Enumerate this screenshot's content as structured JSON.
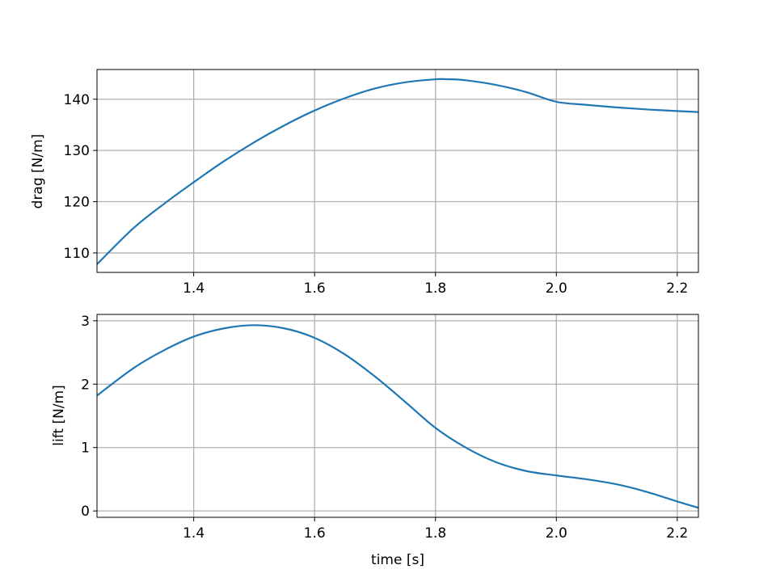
{
  "chart_data": [
    {
      "type": "line",
      "xlabel": "",
      "ylabel": "drag [N/m]",
      "xlim": [
        1.24,
        2.235
      ],
      "ylim": [
        106.2,
        145.8
      ],
      "xticks": [
        1.4,
        1.6,
        1.8,
        2.0,
        2.2
      ],
      "xtick_labels": [
        "1.4",
        "1.6",
        "1.8",
        "2.0",
        "2.2"
      ],
      "yticks": [
        110,
        120,
        130,
        140
      ],
      "ytick_labels": [
        "110",
        "120",
        "130",
        "140"
      ],
      "grid": true,
      "series": [
        {
          "color": "#1f77b4",
          "x": [
            1.24,
            1.3,
            1.35,
            1.4,
            1.45,
            1.5,
            1.55,
            1.6,
            1.65,
            1.7,
            1.75,
            1.8,
            1.82,
            1.85,
            1.9,
            1.95,
            2.0,
            2.05,
            2.1,
            2.15,
            2.2,
            2.235
          ],
          "y": [
            107.8,
            114.8,
            119.5,
            123.8,
            127.9,
            131.6,
            134.9,
            137.8,
            140.2,
            142.1,
            143.3,
            143.9,
            143.9,
            143.7,
            142.8,
            141.4,
            139.5,
            138.9,
            138.4,
            138.0,
            137.7,
            137.5
          ]
        }
      ]
    },
    {
      "type": "line",
      "xlabel": "time [s]",
      "ylabel": "lift [N/m]",
      "xlim": [
        1.24,
        2.235
      ],
      "ylim": [
        -0.1,
        3.1
      ],
      "xticks": [
        1.4,
        1.6,
        1.8,
        2.0,
        2.2
      ],
      "xtick_labels": [
        "1.4",
        "1.6",
        "1.8",
        "2.0",
        "2.2"
      ],
      "yticks": [
        0,
        1,
        2,
        3
      ],
      "ytick_labels": [
        "0",
        "1",
        "2",
        "3"
      ],
      "grid": true,
      "series": [
        {
          "color": "#1f77b4",
          "x": [
            1.24,
            1.3,
            1.35,
            1.4,
            1.45,
            1.5,
            1.55,
            1.6,
            1.65,
            1.7,
            1.75,
            1.8,
            1.85,
            1.9,
            1.95,
            2.0,
            2.05,
            2.1,
            2.15,
            2.2,
            2.235
          ],
          "y": [
            1.82,
            2.25,
            2.53,
            2.75,
            2.88,
            2.93,
            2.88,
            2.73,
            2.47,
            2.12,
            1.72,
            1.31,
            1.0,
            0.77,
            0.63,
            0.56,
            0.5,
            0.42,
            0.3,
            0.15,
            0.05
          ]
        }
      ]
    }
  ]
}
